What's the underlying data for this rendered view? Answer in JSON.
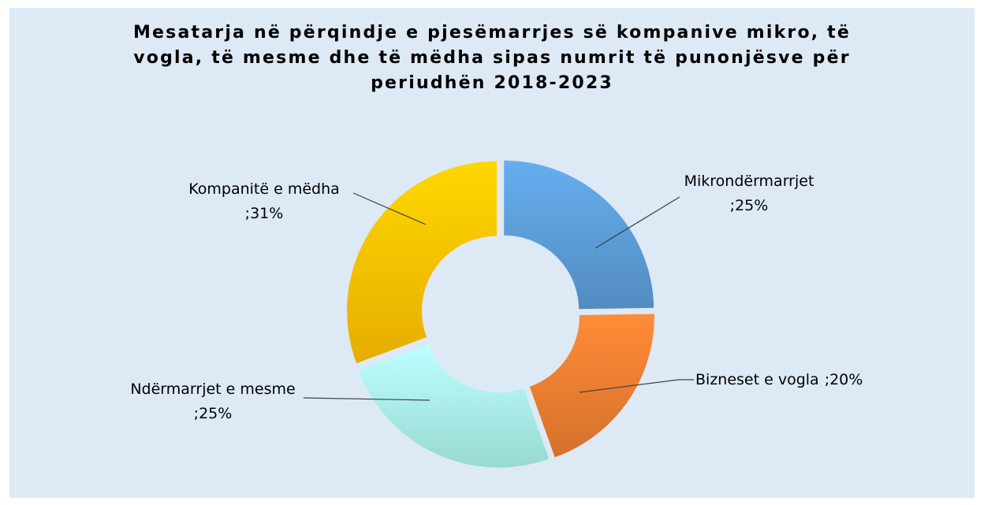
{
  "chart_data": {
    "type": "donut",
    "title": "Mesatarja në përqindje e pjesëmarrjes së kompanive mikro, të vogla, të mesme dhe të mëdha sipas numrit të punonjësve për periudhën 2018-2023",
    "categories": [
      "Mikrondërmarrjet",
      "Bizneset e vogla",
      "Ndërmarrjet e mesme",
      "Kompanitë e mëdha"
    ],
    "values": [
      25,
      20,
      25,
      31
    ],
    "value_labels": [
      ";25%",
      ";20%",
      ";25%",
      ";31%"
    ],
    "colors": [
      "#5b9bd5",
      "#ed7d31",
      "#a9f1e9",
      "#ffc000"
    ]
  }
}
